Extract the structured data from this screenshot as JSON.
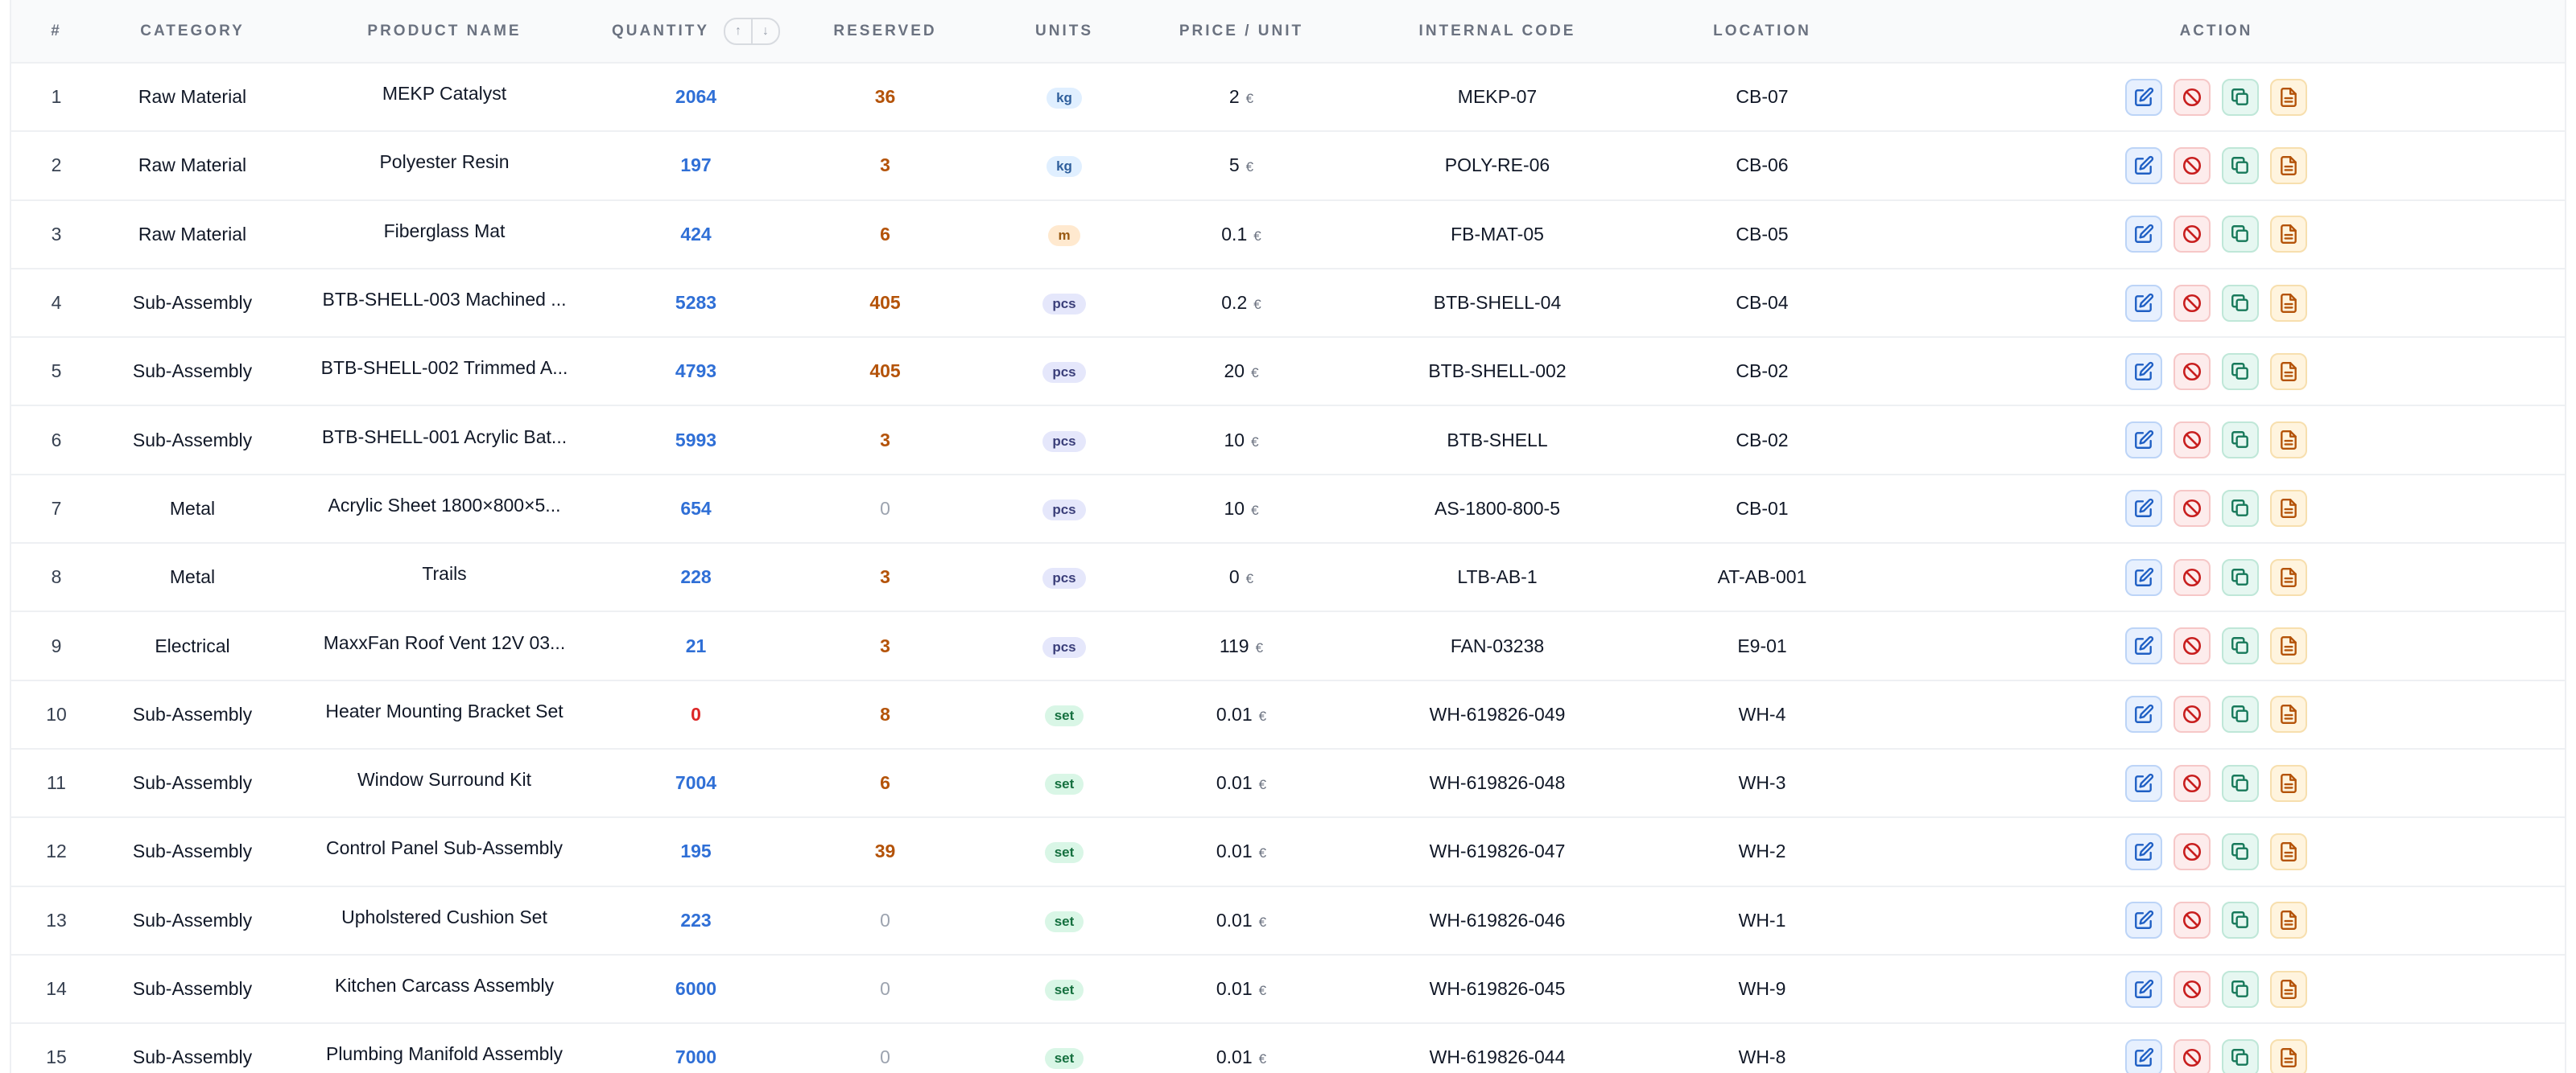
{
  "columns": {
    "index": "#",
    "category": "Category",
    "product_name": "Product Name",
    "quantity": "Quantity",
    "reserved": "Reserved",
    "units": "Units",
    "price": "Price / Unit",
    "internal_code": "Internal Code",
    "location": "Location",
    "action": "Action"
  },
  "sort_icons": {
    "up": "arrow-up-icon",
    "down": "arrow-down-icon"
  },
  "action_icons": [
    "edit-icon",
    "block-icon",
    "copy-icon",
    "document-icon"
  ],
  "currency": "€",
  "colors": {
    "quantity": "#2f6fd6",
    "quantity_zero": "#dc2626",
    "reserved": "#b45309",
    "reserved_zero": "#9ca3af"
  },
  "rows": [
    {
      "index": "1",
      "category": "Raw Material",
      "product_name": "MEKP Catalyst",
      "quantity": "2064",
      "reserved": "36",
      "units": "kg",
      "price": "2",
      "internal_code": "MEKP-07",
      "location": "CB-07"
    },
    {
      "index": "2",
      "category": "Raw Material",
      "product_name": "Polyester Resin",
      "quantity": "197",
      "reserved": "3",
      "units": "kg",
      "price": "5",
      "internal_code": "POLY-RE-06",
      "location": "CB-06"
    },
    {
      "index": "3",
      "category": "Raw Material",
      "product_name": "Fiberglass Mat",
      "quantity": "424",
      "reserved": "6",
      "units": "m",
      "price": "0.1",
      "internal_code": "FB-MAT-05",
      "location": "CB-05"
    },
    {
      "index": "4",
      "category": "Sub-Assembly",
      "product_name": "BTB-SHELL-003 Machined ...",
      "quantity": "5283",
      "reserved": "405",
      "units": "pcs",
      "price": "0.2",
      "internal_code": "BTB-SHELL-04",
      "location": "CB-04"
    },
    {
      "index": "5",
      "category": "Sub-Assembly",
      "product_name": "BTB-SHELL-002 Trimmed A...",
      "quantity": "4793",
      "reserved": "405",
      "units": "pcs",
      "price": "20",
      "internal_code": "BTB-SHELL-002",
      "location": "CB-02"
    },
    {
      "index": "6",
      "category": "Sub-Assembly",
      "product_name": "BTB-SHELL-001 Acrylic Bat...",
      "quantity": "5993",
      "reserved": "3",
      "units": "pcs",
      "price": "10",
      "internal_code": "BTB-SHELL",
      "location": "CB-02"
    },
    {
      "index": "7",
      "category": "Metal",
      "product_name": "Acrylic Sheet 1800×800×5...",
      "quantity": "654",
      "reserved": "0",
      "units": "pcs",
      "price": "10",
      "internal_code": "AS-1800-800-5",
      "location": "CB-01"
    },
    {
      "index": "8",
      "category": "Metal",
      "product_name": "Trails",
      "quantity": "228",
      "reserved": "3",
      "units": "pcs",
      "price": "0",
      "internal_code": "LTB-AB-1",
      "location": "AT-AB-001"
    },
    {
      "index": "9",
      "category": "Electrical",
      "product_name": "MaxxFan Roof Vent 12V 03...",
      "quantity": "21",
      "reserved": "3",
      "units": "pcs",
      "price": "119",
      "internal_code": "FAN-03238",
      "location": "E9-01"
    },
    {
      "index": "10",
      "category": "Sub-Assembly",
      "product_name": "Heater Mounting Bracket Set",
      "quantity": "0",
      "reserved": "8",
      "units": "set",
      "price": "0.01",
      "internal_code": "WH-619826-049",
      "location": "WH-4"
    },
    {
      "index": "11",
      "category": "Sub-Assembly",
      "product_name": "Window Surround Kit",
      "quantity": "7004",
      "reserved": "6",
      "units": "set",
      "price": "0.01",
      "internal_code": "WH-619826-048",
      "location": "WH-3"
    },
    {
      "index": "12",
      "category": "Sub-Assembly",
      "product_name": "Control Panel Sub-Assembly",
      "quantity": "195",
      "reserved": "39",
      "units": "set",
      "price": "0.01",
      "internal_code": "WH-619826-047",
      "location": "WH-2"
    },
    {
      "index": "13",
      "category": "Sub-Assembly",
      "product_name": "Upholstered Cushion Set",
      "quantity": "223",
      "reserved": "0",
      "units": "set",
      "price": "0.01",
      "internal_code": "WH-619826-046",
      "location": "WH-1"
    },
    {
      "index": "14",
      "category": "Sub-Assembly",
      "product_name": "Kitchen Carcass Assembly",
      "quantity": "6000",
      "reserved": "0",
      "units": "set",
      "price": "0.01",
      "internal_code": "WH-619826-045",
      "location": "WH-9"
    },
    {
      "index": "15",
      "category": "Sub-Assembly",
      "product_name": "Plumbing Manifold Assembly",
      "quantity": "7000",
      "reserved": "0",
      "units": "set",
      "price": "0.01",
      "internal_code": "WH-619826-044",
      "location": "WH-8"
    }
  ]
}
